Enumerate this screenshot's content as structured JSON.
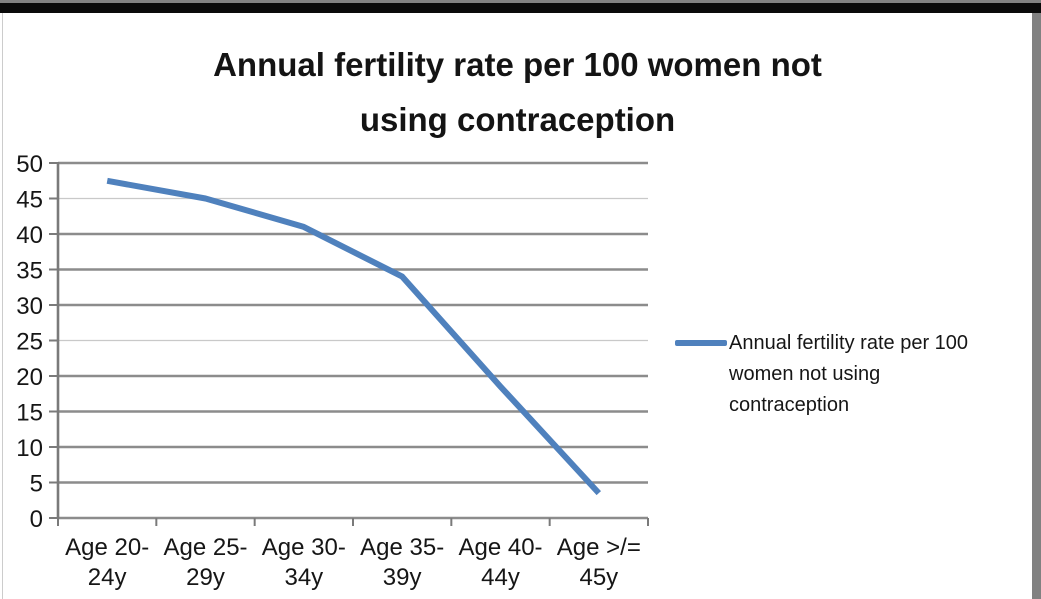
{
  "frame": {
    "outer_top_strip_color": "#828282",
    "outer_top_bar_color": "#0a0a0a",
    "outer_right_strip_color": "#818181",
    "panel_background": "#ffffff"
  },
  "chart_data": {
    "type": "line",
    "title": "Annual fertility rate per 100 women not using contraception",
    "title_lines": [
      "Annual fertility rate per 100 women not",
      "using contraception"
    ],
    "categories": [
      "Age 20-24y",
      "Age 25-29y",
      "Age 30-34y",
      "Age 35-39y",
      "Age 40-44y",
      "Age >/= 45y"
    ],
    "series": [
      {
        "name": "Annual fertility rate per 100 women not using contraception",
        "values": [
          47.5,
          45,
          41,
          34,
          18.5,
          3.5
        ],
        "color": "#4f81bd"
      }
    ],
    "xlabel": "",
    "ylabel": "",
    "ylim": [
      0,
      50
    ],
    "y_tick_step": 5,
    "y_ticks": [
      50,
      45,
      40,
      35,
      30,
      25,
      20,
      15,
      10,
      5,
      0
    ],
    "grid": true,
    "light_gridlines": [
      45,
      25
    ],
    "legend_position": "right",
    "legend_label": "Annual fertility rate per 100 women not using contraception",
    "colors": {
      "line": "#4f81bd",
      "gridline": "#8c8c8c",
      "gridline_light": "#c9c9c9",
      "axis": "#7a7a7a",
      "text": "#161616"
    }
  }
}
